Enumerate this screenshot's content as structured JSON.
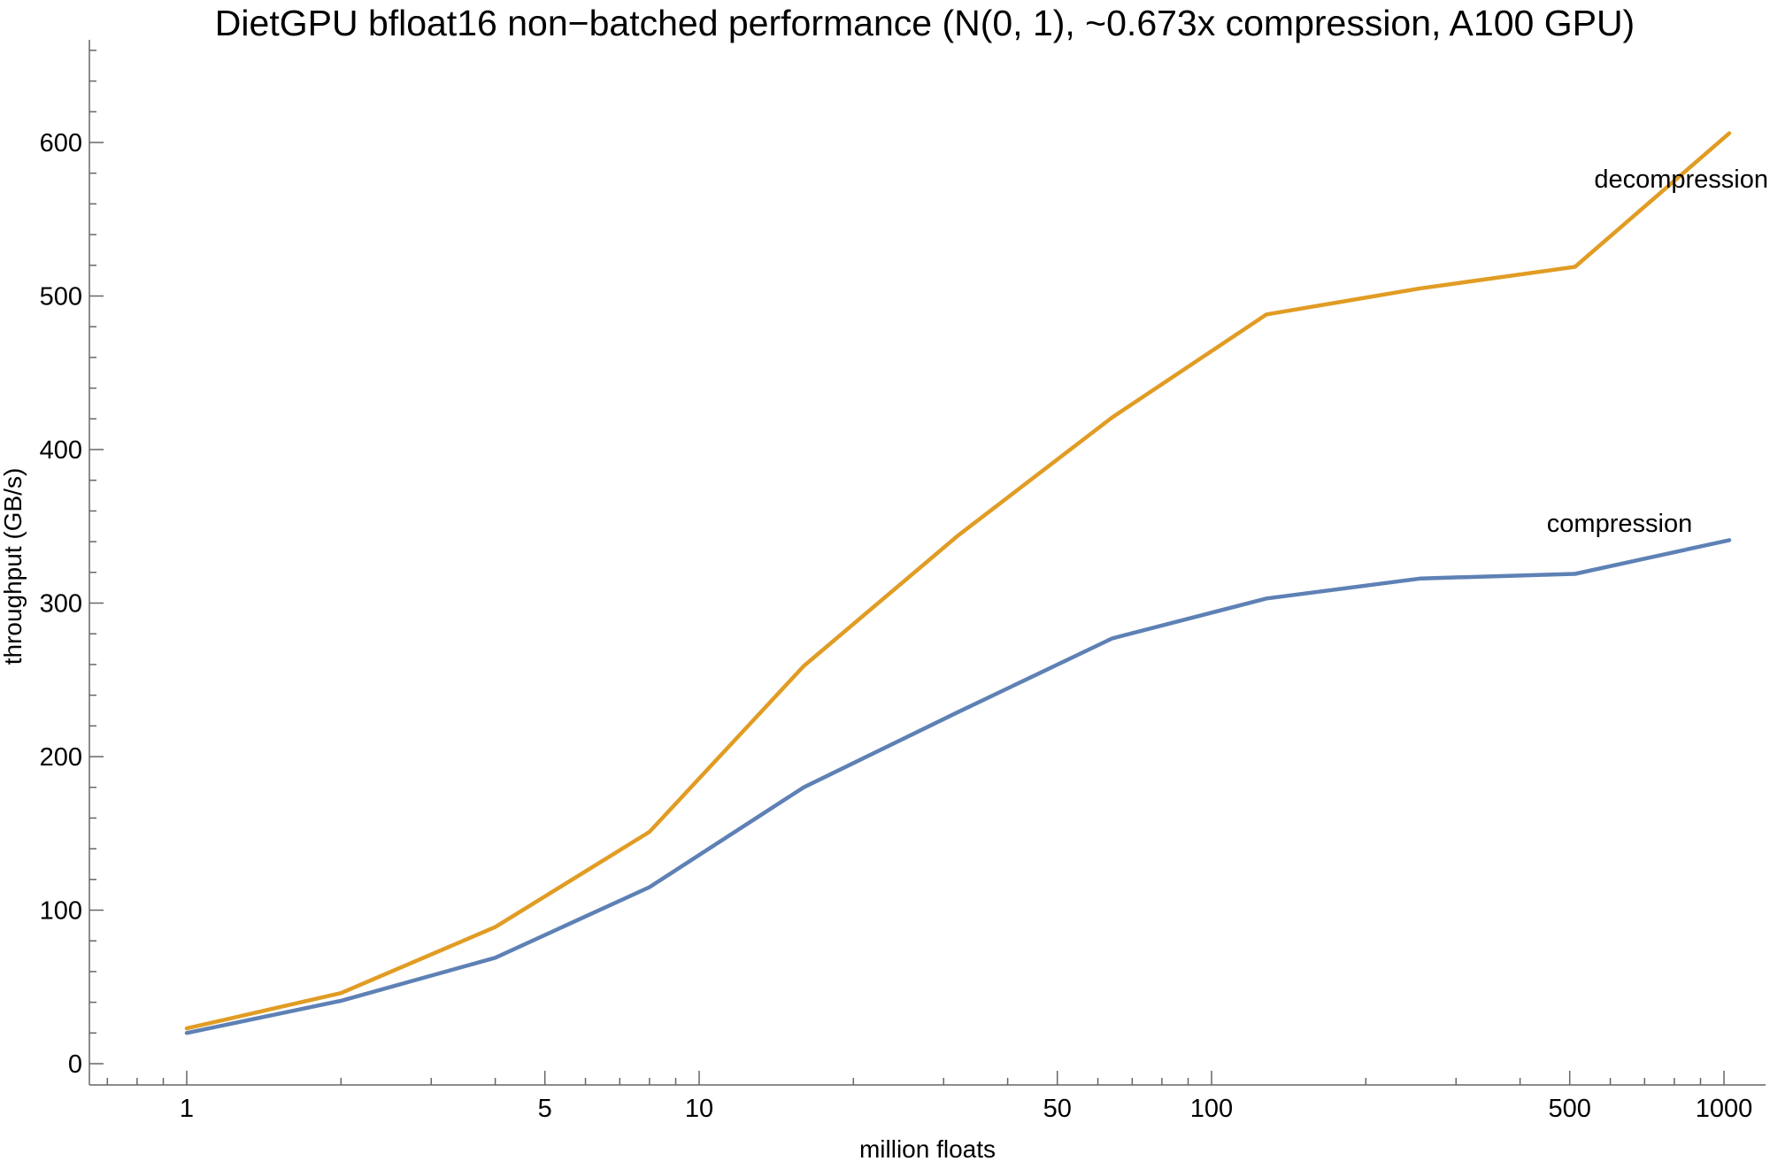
{
  "chart_data": {
    "type": "line",
    "title": "DietGPU bfloat16 non−batched performance (N(0, 1), ~0.673x compression, A100 GPU)",
    "xlabel": "million floats",
    "ylabel": "throughput (GB/s)",
    "x_scale": "log",
    "y_scale": "linear",
    "grid": false,
    "legend_position": "inline labels near right ends of lines",
    "x": [
      1,
      2,
      4,
      8,
      16,
      32,
      64,
      128,
      256,
      512,
      1024
    ],
    "series": [
      {
        "name": "decompression",
        "color": "#E19C24",
        "values": [
          23,
          46,
          89,
          151,
          259,
          344,
          421,
          488,
          505,
          519,
          606
        ]
      },
      {
        "name": "compression",
        "color": "#5E81B5",
        "values": [
          20,
          41,
          69,
          115,
          180,
          229,
          277,
          303,
          316,
          319,
          341
        ]
      }
    ],
    "x_ticks": [
      1,
      5,
      10,
      50,
      100,
      500,
      1000
    ],
    "x_tick_labels": [
      "1",
      "5",
      "10",
      "50",
      "100",
      "500",
      "1000"
    ],
    "y_ticks": [
      0,
      100,
      200,
      300,
      400,
      500,
      600
    ],
    "y_tick_labels": [
      "0",
      "100",
      "200",
      "300",
      "400",
      "500",
      "600"
    ],
    "y_minor_tick_step": 20,
    "xlim": [
      0.65,
      1230
    ],
    "ylim": [
      -14,
      667
    ]
  }
}
